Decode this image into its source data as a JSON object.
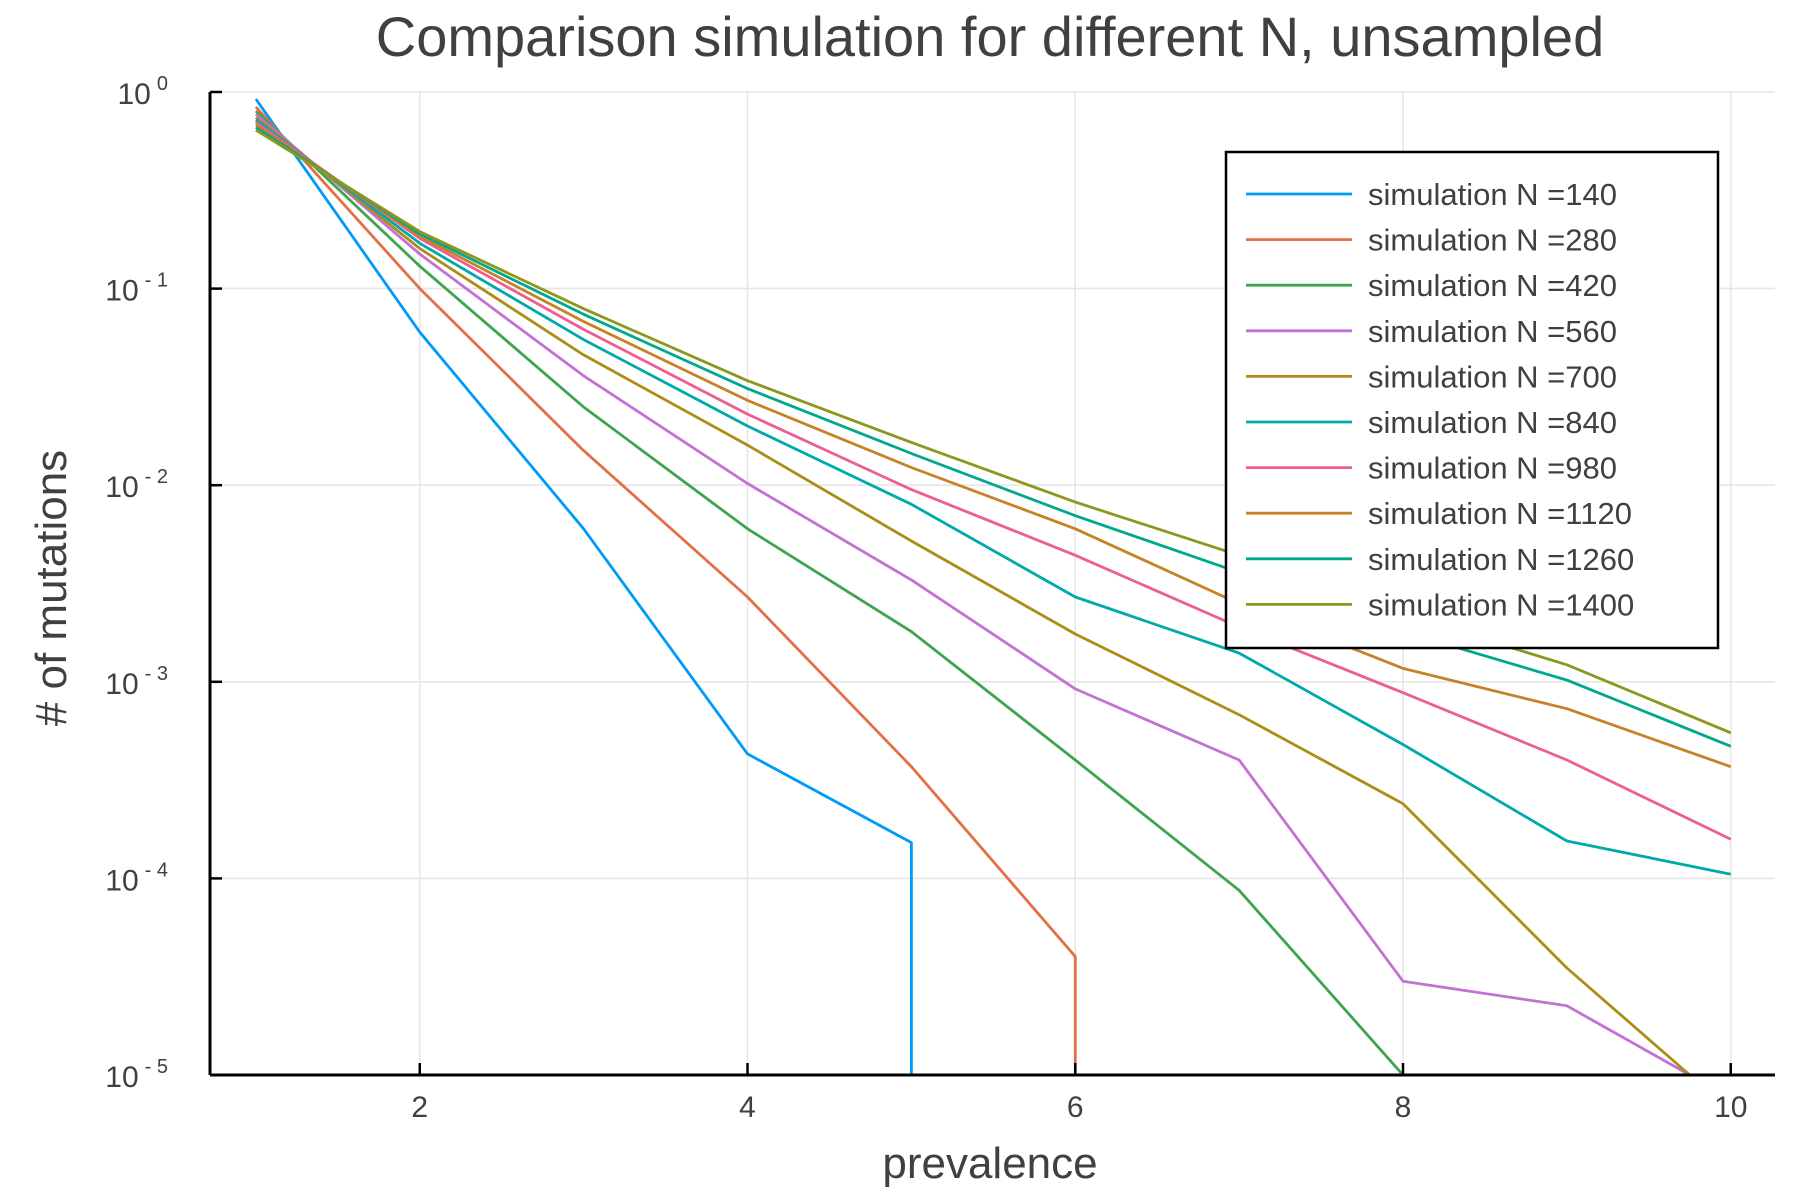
{
  "chart_data": {
    "type": "line",
    "title": "Comparison simulation for different N, unsampled",
    "xlabel": "prevalence",
    "ylabel": "# of mutations",
    "xlim": [
      0.72,
      10.27
    ],
    "ylim": [
      1e-05,
      1
    ],
    "yscale": "log",
    "xticks": [
      2,
      4,
      6,
      8,
      10
    ],
    "yticks": [
      {
        "base": "10",
        "exp": "0",
        "value": 1
      },
      {
        "base": "10",
        "exp": "- 1",
        "value": 0.1
      },
      {
        "base": "10",
        "exp": "- 2",
        "value": 0.01
      },
      {
        "base": "10",
        "exp": "- 3",
        "value": 0.001
      },
      {
        "base": "10",
        "exp": "- 4",
        "value": 0.0001
      },
      {
        "base": "10",
        "exp": "- 5",
        "value": 1e-05
      }
    ],
    "grid": true,
    "legend_position": "top-right",
    "series": [
      {
        "name": "simulation N =140",
        "color": "#009AFA",
        "x": [
          1,
          2,
          3,
          4,
          5,
          5
        ],
        "y": [
          0.92,
          0.06,
          0.006,
          0.00043,
          0.000152,
          1e-05
        ]
      },
      {
        "name": "simulation N =280",
        "color": "#E36F47",
        "x": [
          1,
          2,
          3,
          4,
          5,
          6,
          6
        ],
        "y": [
          0.84,
          0.1,
          0.015,
          0.0027,
          0.00037,
          4e-05,
          1e-05
        ]
      },
      {
        "name": "simulation N =420",
        "color": "#3EA44E",
        "x": [
          1,
          2,
          3,
          4,
          5,
          6,
          7,
          8
        ],
        "y": [
          0.8,
          0.13,
          0.025,
          0.006,
          0.0018,
          0.0004,
          8.7e-05,
          1e-05
        ]
      },
      {
        "name": "simulation N =560",
        "color": "#C371D2",
        "x": [
          1,
          2,
          3,
          4,
          5,
          6,
          7,
          8,
          9,
          9.75
        ],
        "y": [
          0.77,
          0.15,
          0.036,
          0.0102,
          0.0033,
          0.00092,
          0.0004,
          3e-05,
          2.25e-05,
          1e-05
        ]
      },
      {
        "name": "simulation N =700",
        "color": "#AC8D18",
        "x": [
          1,
          2,
          3,
          4,
          5,
          6,
          7,
          8,
          9,
          9.75
        ],
        "y": [
          0.74,
          0.16,
          0.046,
          0.016,
          0.0052,
          0.00175,
          0.00068,
          0.00024,
          3.5e-05,
          1e-05
        ]
      },
      {
        "name": "simulation N =840",
        "color": "#00A9AD",
        "x": [
          1,
          2,
          3,
          4,
          5,
          6,
          7,
          8,
          9,
          10
        ],
        "y": [
          0.72,
          0.17,
          0.055,
          0.02,
          0.008,
          0.0027,
          0.0014,
          0.00048,
          0.000155,
          0.000105
        ]
      },
      {
        "name": "simulation N =980",
        "color": "#ED5E93",
        "x": [
          1,
          2,
          3,
          4,
          5,
          6,
          7,
          8,
          9,
          10
        ],
        "y": [
          0.7,
          0.18,
          0.062,
          0.023,
          0.0095,
          0.0044,
          0.0019,
          0.00088,
          0.0004,
          0.000158
        ]
      },
      {
        "name": "simulation N =1120",
        "color": "#C68225",
        "x": [
          1,
          2,
          3,
          4,
          5,
          6,
          7,
          8,
          9,
          10
        ],
        "y": [
          0.68,
          0.185,
          0.068,
          0.027,
          0.0123,
          0.006,
          0.0025,
          0.00117,
          0.00073,
          0.00037
        ]
      },
      {
        "name": "simulation N =1260",
        "color": "#00A98D",
        "x": [
          1,
          2,
          3,
          4,
          5,
          6,
          7,
          8,
          9,
          10
        ],
        "y": [
          0.66,
          0.19,
          0.074,
          0.031,
          0.0145,
          0.007,
          0.0036,
          0.0018,
          0.00102,
          0.00047
        ]
      },
      {
        "name": "simulation N =1400",
        "color": "#8E971D",
        "x": [
          1,
          2,
          3,
          4,
          5,
          6,
          7,
          8,
          9,
          10
        ],
        "y": [
          0.64,
          0.195,
          0.079,
          0.034,
          0.0165,
          0.0082,
          0.0044,
          0.0022,
          0.00122,
          0.00055
        ]
      }
    ]
  }
}
